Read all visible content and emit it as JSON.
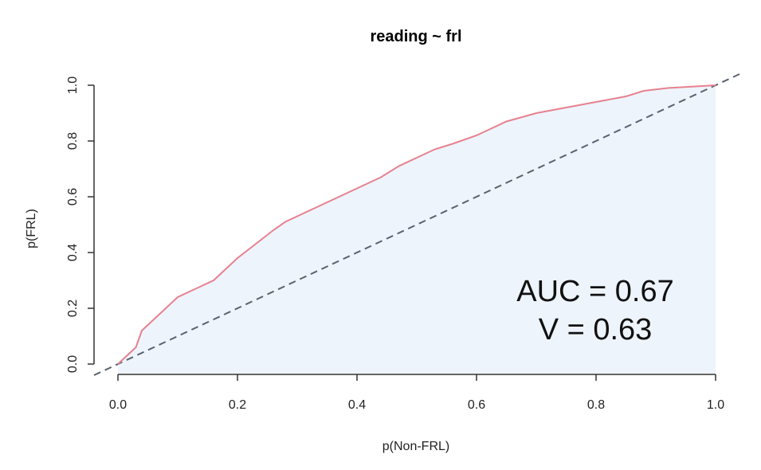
{
  "chart_data": {
    "type": "line",
    "title": "reading ~ frl",
    "xlabel": "p(Non-FRL)",
    "ylabel": "p(FRL)",
    "xlim": [
      0,
      1
    ],
    "ylim": [
      0,
      1
    ],
    "xticks": [
      "0.0",
      "0.2",
      "0.4",
      "0.6",
      "0.8",
      "1.0"
    ],
    "yticks": [
      "0.0",
      "0.2",
      "0.4",
      "0.6",
      "0.8",
      "1.0"
    ],
    "grid": false,
    "series": [
      {
        "kind": "roc-curve",
        "color": "#e7818f",
        "fill": "#eef4fc",
        "x": [
          0.0,
          0.01,
          0.02,
          0.03,
          0.04,
          0.05,
          0.06,
          0.08,
          0.1,
          0.13,
          0.16,
          0.18,
          0.2,
          0.23,
          0.26,
          0.28,
          0.3,
          0.33,
          0.36,
          0.4,
          0.42,
          0.44,
          0.47,
          0.5,
          0.53,
          0.56,
          0.6,
          0.62,
          0.65,
          0.7,
          0.75,
          0.8,
          0.85,
          0.88,
          0.92,
          0.96,
          1.0
        ],
        "y": [
          0.0,
          0.02,
          0.04,
          0.06,
          0.12,
          0.14,
          0.16,
          0.2,
          0.24,
          0.27,
          0.3,
          0.34,
          0.38,
          0.43,
          0.48,
          0.51,
          0.53,
          0.56,
          0.59,
          0.63,
          0.65,
          0.67,
          0.71,
          0.74,
          0.77,
          0.79,
          0.82,
          0.84,
          0.87,
          0.9,
          0.92,
          0.94,
          0.96,
          0.98,
          0.99,
          0.995,
          1.0
        ]
      },
      {
        "kind": "diagonal-reference",
        "color": "#5a6270",
        "dashed": true,
        "x": [
          -0.04,
          1.04
        ],
        "y": [
          -0.04,
          1.04
        ]
      }
    ],
    "annotations": [
      "AUC = 0.67",
      "V = 0.63"
    ]
  }
}
